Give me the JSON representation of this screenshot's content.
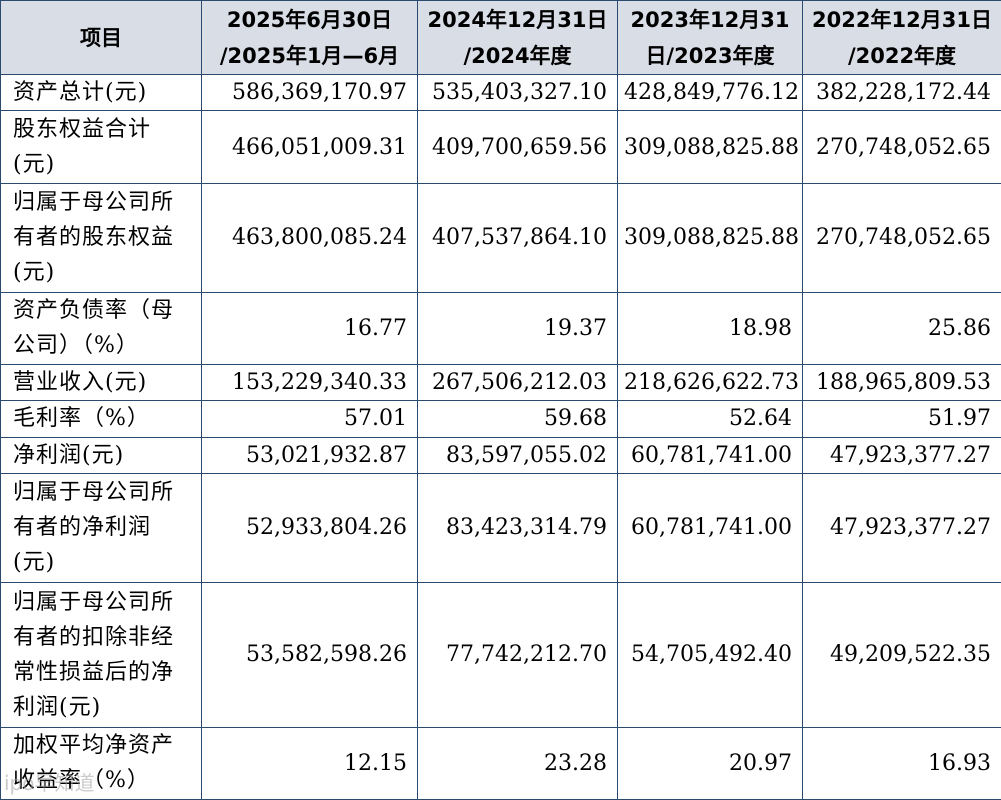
{
  "table": {
    "headers": [
      [
        "项目"
      ],
      [
        "2025年6月30日",
        "/2025年1月—6月"
      ],
      [
        "2024年12月31日",
        "/2024年度"
      ],
      [
        "2023年12月31",
        "日/2023年度"
      ],
      [
        "2022年12月31日",
        "/2022年度"
      ]
    ],
    "rows": [
      {
        "label": [
          "资产总计(元)"
        ],
        "values": [
          "586,369,170.97",
          "535,403,327.10",
          "428,849,776.12",
          "382,228,172.44"
        ]
      },
      {
        "label": [
          "股东权益合计",
          "(元)"
        ],
        "values": [
          "466,051,009.31",
          "409,700,659.56",
          "309,088,825.88",
          "270,748,052.65"
        ]
      },
      {
        "label": [
          "归属于母公司所",
          "有者的股东权益",
          "(元)"
        ],
        "values": [
          "463,800,085.24",
          "407,537,864.10",
          "309,088,825.88",
          "270,748,052.65"
        ]
      },
      {
        "label": [
          "资产负债率（母",
          "公司）（%）"
        ],
        "values": [
          "16.77",
          "19.37",
          "18.98",
          "25.86"
        ]
      },
      {
        "label": [
          "营业收入(元)"
        ],
        "values": [
          "153,229,340.33",
          "267,506,212.03",
          "218,626,622.73",
          "188,965,809.53"
        ]
      },
      {
        "label": [
          "毛利率（%）"
        ],
        "values": [
          "57.01",
          "59.68",
          "52.64",
          "51.97"
        ]
      },
      {
        "label": [
          "净利润(元)"
        ],
        "values": [
          "53,021,932.87",
          "83,597,055.02",
          "60,781,741.00",
          "47,923,377.27"
        ]
      },
      {
        "label": [
          "归属于母公司所",
          "有者的净利润",
          "(元)"
        ],
        "values": [
          "52,933,804.26",
          "83,423,314.79",
          "60,781,741.00",
          "47,923,377.27"
        ]
      },
      {
        "label": [
          "归属于母公司所",
          "有者的扣除非经",
          "常性损益后的净",
          "利润(元)"
        ],
        "values": [
          "53,582,598.26",
          "77,742,212.70",
          "54,705,492.40",
          "49,209,522.35"
        ]
      },
      {
        "label": [
          "加权平均净资产",
          "收益率（%）"
        ],
        "values": [
          "12.15",
          "23.28",
          "20.97",
          "16.93"
        ]
      }
    ]
  },
  "watermark": "ipo早知道"
}
